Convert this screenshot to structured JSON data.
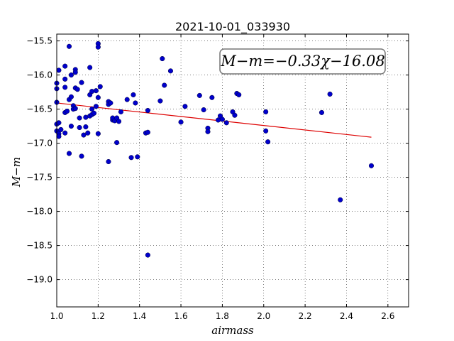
{
  "chart_data": {
    "type": "scatter",
    "title": "2021-10-01_033930",
    "xlabel": "airmass",
    "ylabel": "M−m",
    "xlim": [
      1.0,
      2.7
    ],
    "ylim": [
      -19.4,
      -15.4
    ],
    "y_inverted": true,
    "grid": true,
    "xticks": [
      1.0,
      1.2,
      1.4,
      1.6,
      1.8,
      2.0,
      2.2,
      2.4,
      2.6
    ],
    "xtick_labels": [
      "1.0",
      "1.2",
      "1.4",
      "1.6",
      "1.8",
      "2.0",
      "2.2",
      "2.4",
      "2.6"
    ],
    "yticks": [
      -15.5,
      -16.0,
      -16.5,
      -17.0,
      -17.5,
      -18.0,
      -18.5,
      -19.0
    ],
    "ytick_labels": [
      "−15.5",
      "−16.0",
      "−16.5",
      "−17.0",
      "−17.5",
      "−18.0",
      "−18.5",
      "−19.0"
    ],
    "annotation": "M−m=−0.33χ−16.08",
    "point_color": "#0000cc",
    "fit_color": "#dd0000",
    "fit": {
      "slope": -0.33,
      "intercept": -16.08,
      "x_range": [
        1.0,
        2.52
      ]
    },
    "points": [
      [
        1.0,
        -16.12
      ],
      [
        1.0,
        -16.2
      ],
      [
        1.0,
        -16.4
      ],
      [
        1.0,
        -16.72
      ],
      [
        1.0,
        -16.82
      ],
      [
        1.01,
        -15.93
      ],
      [
        1.01,
        -16.7
      ],
      [
        1.01,
        -16.86
      ],
      [
        1.01,
        -16.9
      ],
      [
        1.02,
        -16.8
      ],
      [
        1.04,
        -15.87
      ],
      [
        1.04,
        -16.06
      ],
      [
        1.04,
        -16.18
      ],
      [
        1.04,
        -16.55
      ],
      [
        1.04,
        -16.85
      ],
      [
        1.05,
        -16.53
      ],
      [
        1.06,
        -15.58
      ],
      [
        1.06,
        -16.36
      ],
      [
        1.06,
        -17.15
      ],
      [
        1.07,
        -16.0
      ],
      [
        1.07,
        -16.32
      ],
      [
        1.07,
        -16.75
      ],
      [
        1.08,
        -16.45
      ],
      [
        1.08,
        -16.5
      ],
      [
        1.09,
        -15.92
      ],
      [
        1.09,
        -15.96
      ],
      [
        1.09,
        -16.19
      ],
      [
        1.09,
        -16.49
      ],
      [
        1.1,
        -16.21
      ],
      [
        1.11,
        -16.63
      ],
      [
        1.11,
        -16.77
      ],
      [
        1.12,
        -16.11
      ],
      [
        1.12,
        -17.19
      ],
      [
        1.13,
        -16.88
      ],
      [
        1.14,
        -16.62
      ],
      [
        1.14,
        -16.76
      ],
      [
        1.15,
        -16.85
      ],
      [
        1.16,
        -16.6
      ],
      [
        1.16,
        -15.89
      ],
      [
        1.16,
        -16.29
      ],
      [
        1.17,
        -16.24
      ],
      [
        1.17,
        -16.5
      ],
      [
        1.17,
        -16.58
      ],
      [
        1.18,
        -16.56
      ],
      [
        1.19,
        -16.23
      ],
      [
        1.19,
        -16.46
      ],
      [
        1.2,
        -15.54
      ],
      [
        1.2,
        -15.59
      ],
      [
        1.2,
        -16.33
      ],
      [
        1.2,
        -16.86
      ],
      [
        1.21,
        -16.17
      ],
      [
        1.25,
        -16.39
      ],
      [
        1.25,
        -16.43
      ],
      [
        1.25,
        -17.27
      ],
      [
        1.26,
        -16.41
      ],
      [
        1.27,
        -16.66
      ],
      [
        1.27,
        -16.63
      ],
      [
        1.28,
        -16.67
      ],
      [
        1.29,
        -16.63
      ],
      [
        1.29,
        -16.99
      ],
      [
        1.3,
        -16.68
      ],
      [
        1.31,
        -16.54
      ],
      [
        1.34,
        -16.36
      ],
      [
        1.36,
        -17.21
      ],
      [
        1.37,
        -16.29
      ],
      [
        1.38,
        -16.41
      ],
      [
        1.39,
        -17.2
      ],
      [
        1.43,
        -16.85
      ],
      [
        1.44,
        -16.84
      ],
      [
        1.44,
        -16.52
      ],
      [
        1.44,
        -18.64
      ],
      [
        1.5,
        -16.38
      ],
      [
        1.51,
        -15.76
      ],
      [
        1.52,
        -16.15
      ],
      [
        1.55,
        -15.94
      ],
      [
        1.6,
        -16.69
      ],
      [
        1.62,
        -16.46
      ],
      [
        1.69,
        -16.3
      ],
      [
        1.71,
        -16.51
      ],
      [
        1.73,
        -16.78
      ],
      [
        1.73,
        -16.83
      ],
      [
        1.75,
        -16.33
      ],
      [
        1.78,
        -16.66
      ],
      [
        1.79,
        -16.6
      ],
      [
        1.8,
        -16.65
      ],
      [
        1.82,
        -16.7
      ],
      [
        1.85,
        -16.54
      ],
      [
        1.86,
        -16.59
      ],
      [
        1.87,
        -16.27
      ],
      [
        1.88,
        -16.29
      ],
      [
        2.01,
        -16.82
      ],
      [
        2.01,
        -16.54
      ],
      [
        2.02,
        -16.98
      ],
      [
        2.28,
        -16.55
      ],
      [
        2.32,
        -16.28
      ],
      [
        2.37,
        -17.83
      ],
      [
        2.52,
        -17.33
      ]
    ]
  }
}
